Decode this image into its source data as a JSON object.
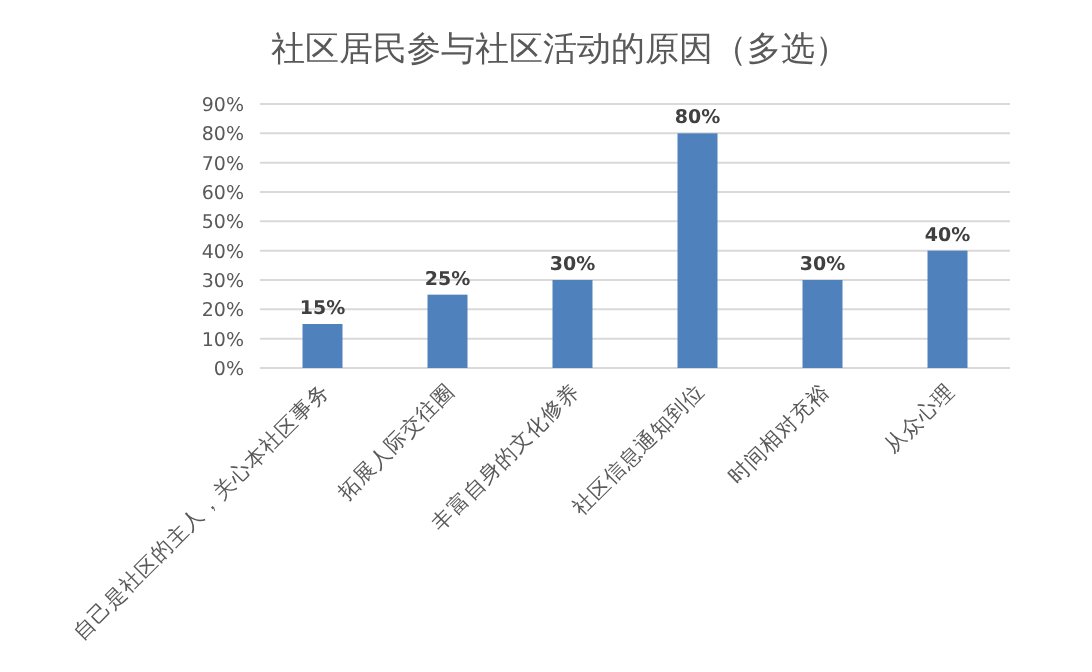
{
  "chart_data": {
    "type": "bar",
    "title": "社区居民参与社区活动的原因（多选）",
    "categories": [
      "自己是社区的主人，关心本社区事务",
      "拓展人际交往圈",
      "丰富自身的文化修养",
      "社区信息通知到位",
      "时间相对充裕",
      "从众心理"
    ],
    "values": [
      15,
      25,
      30,
      80,
      30,
      40
    ],
    "value_labels": [
      "15%",
      "25%",
      "30%",
      "80%",
      "30%",
      "40%"
    ],
    "color": "#4f81bd",
    "ylim": [
      0,
      90
    ],
    "yticks": [
      {
        "value": 0,
        "label": "0%"
      },
      {
        "value": 10,
        "label": "10%"
      },
      {
        "value": 20,
        "label": "20%"
      },
      {
        "value": 30,
        "label": "30%"
      },
      {
        "value": 40,
        "label": "40%"
      },
      {
        "value": 50,
        "label": "50%"
      },
      {
        "value": 60,
        "label": "60%"
      },
      {
        "value": 70,
        "label": "70%"
      },
      {
        "value": 80,
        "label": "80%"
      },
      {
        "value": 90,
        "label": "90%"
      }
    ],
    "grid": "y"
  }
}
